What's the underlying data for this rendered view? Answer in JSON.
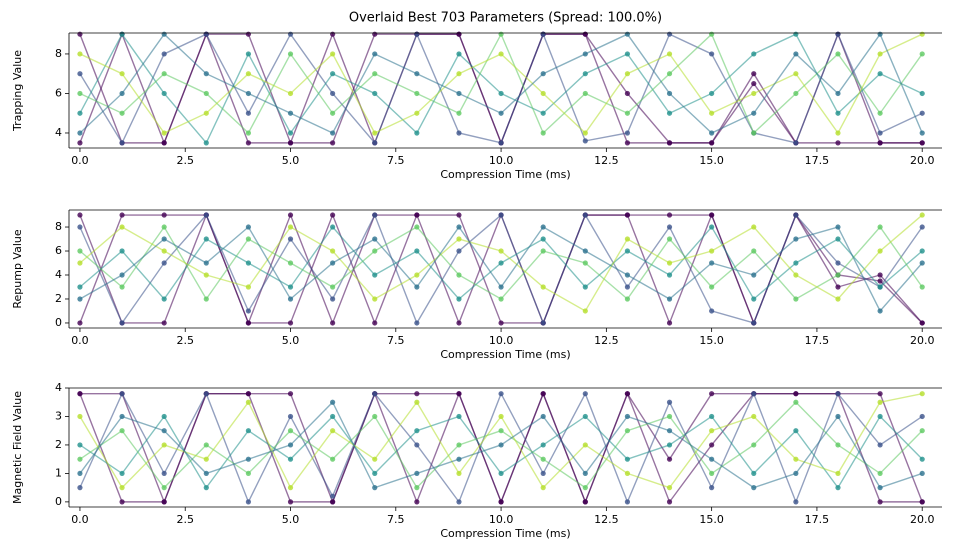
{
  "chart_data": [
    {
      "type": "line",
      "title": "Overlaid Best 703 Parameters (Spread: 100.0%)",
      "xlabel": "Compression Time (ms)",
      "ylabel": "Trapping Value",
      "x": [
        0,
        1,
        2,
        3,
        4,
        5,
        6,
        7,
        8,
        9,
        10,
        11,
        12,
        13,
        14,
        15,
        16,
        17,
        18,
        19,
        20
      ],
      "xlim": [
        -0.26,
        20.47
      ],
      "xticks": [
        {
          "value": 0,
          "label": "0.0"
        },
        2.5,
        {
          "value": 5,
          "label": "5.0"
        },
        7.5,
        {
          "value": 10,
          "label": "10.0"
        },
        12.5,
        {
          "value": 15,
          "label": "15.0"
        },
        17.5,
        {
          "value": 20,
          "label": "20.0"
        }
      ],
      "ylim": [
        3.24,
        9.06
      ],
      "yticks": [
        4,
        6,
        8
      ],
      "series": [
        {
          "color": "#440154",
          "values": [
            9,
            3.5,
            3.5,
            9,
            9,
            3.5,
            9,
            3.5,
            9,
            9,
            3.5,
            9,
            9,
            3.5,
            3.5,
            3.5,
            6.5,
            3.5,
            3.5,
            3.5,
            3.5
          ]
        },
        {
          "color": "#440154",
          "values": [
            3.5,
            9,
            3.5,
            9,
            3.5,
            3.5,
            3.5,
            9,
            9,
            9,
            3.5,
            9,
            9,
            6,
            3.5,
            3.5,
            7,
            3.5,
            9,
            3.5,
            3.5
          ]
        },
        {
          "color": "#3b528b",
          "values": [
            7,
            3.5,
            8,
            9,
            5,
            9,
            6,
            3.5,
            9,
            4,
            3.5,
            9,
            3.6,
            4,
            9,
            8,
            4,
            3.5,
            9,
            4,
            5
          ]
        },
        {
          "color": "#21918c",
          "values": [
            5,
            9,
            6,
            3.5,
            8,
            4,
            7,
            6,
            4,
            8,
            6,
            5,
            7,
            8,
            5,
            6,
            8,
            9,
            5,
            7,
            6
          ]
        },
        {
          "color": "#5ec962",
          "values": [
            6,
            5,
            7,
            6,
            4,
            8,
            5,
            7,
            6,
            5,
            9,
            4,
            6,
            5,
            7,
            9,
            4,
            6,
            8,
            5,
            8
          ]
        },
        {
          "color": "#b5de2b",
          "values": [
            8,
            7,
            4,
            5,
            7,
            6,
            8,
            4,
            5,
            7,
            8,
            6,
            4,
            7,
            8,
            5,
            6,
            7,
            4,
            8,
            9
          ]
        },
        {
          "color": "#2c728e",
          "values": [
            4,
            6,
            9,
            7,
            6,
            5,
            4,
            8,
            7,
            6,
            5,
            7,
            8,
            9,
            6,
            4,
            5,
            8,
            6,
            9,
            4
          ]
        }
      ]
    },
    {
      "type": "line",
      "xlabel": "Compression Time (ms)",
      "ylabel": "Repump Value",
      "x": [
        0,
        1,
        2,
        3,
        4,
        5,
        6,
        7,
        8,
        9,
        10,
        11,
        12,
        13,
        14,
        15,
        16,
        17,
        18,
        19,
        20
      ],
      "xlim": [
        -0.26,
        20.47
      ],
      "xticks": [
        {
          "value": 0,
          "label": "0.0"
        },
        2.5,
        {
          "value": 5,
          "label": "5.0"
        },
        7.5,
        {
          "value": 10,
          "label": "10.0"
        },
        12.5,
        {
          "value": 15,
          "label": "15.0"
        },
        17.5,
        {
          "value": 20,
          "label": "20.0"
        }
      ],
      "ylim": [
        -0.42,
        9.42
      ],
      "yticks": [
        0,
        2,
        4,
        6,
        8
      ],
      "series": [
        {
          "color": "#440154",
          "values": [
            9,
            0,
            0,
            9,
            0,
            0,
            9,
            0,
            9,
            9,
            0,
            0,
            9,
            9,
            9,
            9,
            0,
            9,
            4,
            3.5,
            0
          ]
        },
        {
          "color": "#440154",
          "values": [
            0,
            9,
            9,
            9,
            0,
            9,
            0,
            9,
            9,
            0,
            9,
            0,
            9,
            9,
            0,
            9,
            0,
            9,
            3,
            4,
            0
          ]
        },
        {
          "color": "#3b528b",
          "values": [
            8,
            0,
            5,
            9,
            1,
            7,
            2,
            9,
            0,
            6,
            9,
            0,
            9,
            3,
            8,
            1,
            0,
            9,
            5,
            3,
            8
          ]
        },
        {
          "color": "#21918c",
          "values": [
            3,
            6,
            2,
            7,
            5,
            3,
            8,
            4,
            6,
            2,
            5,
            7,
            3,
            6,
            4,
            8,
            2,
            5,
            7,
            3,
            6
          ]
        },
        {
          "color": "#5ec962",
          "values": [
            6,
            3,
            8,
            2,
            7,
            5,
            3,
            6,
            8,
            4,
            2,
            6,
            5,
            2,
            7,
            3,
            6,
            2,
            4,
            8,
            3
          ]
        },
        {
          "color": "#b5de2b",
          "values": [
            5,
            8,
            6,
            4,
            3,
            8,
            6,
            2,
            4,
            7,
            6,
            3,
            1,
            7,
            5,
            6,
            8,
            4,
            2,
            6,
            9
          ]
        },
        {
          "color": "#2c728e",
          "values": [
            2,
            4,
            7,
            5,
            8,
            2,
            5,
            7,
            3,
            8,
            3,
            8,
            6,
            4,
            2,
            5,
            4,
            7,
            8,
            1,
            5
          ]
        }
      ]
    },
    {
      "type": "line",
      "xlabel": "Compression Time (ms)",
      "ylabel": "Magnetic Field Value",
      "x": [
        0,
        1,
        2,
        3,
        4,
        5,
        6,
        7,
        8,
        9,
        10,
        11,
        12,
        13,
        14,
        15,
        16,
        17,
        18,
        19,
        20
      ],
      "xlim": [
        -0.26,
        20.47
      ],
      "xticks": [
        {
          "value": 0,
          "label": "0.0"
        },
        2.5,
        {
          "value": 5,
          "label": "5.0"
        },
        7.5,
        {
          "value": 10,
          "label": "10.0"
        },
        12.5,
        {
          "value": 15,
          "label": "15.0"
        },
        17.5,
        {
          "value": 20,
          "label": "20.0"
        }
      ],
      "ylim": [
        -0.18,
        4
      ],
      "yticks": [
        0,
        1,
        2,
        3,
        4
      ],
      "series": [
        {
          "color": "#440154",
          "values": [
            3.8,
            0,
            0,
            3.8,
            3.8,
            0,
            0,
            3.8,
            0,
            3.8,
            0,
            3.8,
            0,
            3.8,
            1.5,
            3.8,
            3.8,
            3.8,
            3.8,
            3.8,
            0
          ]
        },
        {
          "color": "#440154",
          "values": [
            3.8,
            3.8,
            0,
            3.8,
            3.8,
            3.8,
            0,
            3.8,
            3.8,
            3.8,
            0,
            3.8,
            0,
            3.8,
            0,
            2,
            3.8,
            3.8,
            3.8,
            0,
            0
          ]
        },
        {
          "color": "#3b528b",
          "values": [
            0.5,
            3.8,
            1,
            3.8,
            0,
            3,
            0.2,
            3.8,
            2,
            0,
            3.8,
            1,
            3.8,
            0,
            3.5,
            0.5,
            3.8,
            0,
            3.8,
            2,
            3
          ]
        },
        {
          "color": "#21918c",
          "values": [
            2,
            1,
            3,
            0.5,
            2.5,
            1.5,
            3,
            1,
            2.5,
            3,
            1,
            2,
            3,
            1.5,
            2,
            3,
            1,
            2.5,
            0.5,
            3,
            1.5
          ]
        },
        {
          "color": "#5ec962",
          "values": [
            1.5,
            2.5,
            0.5,
            2,
            1,
            2.5,
            1.5,
            3,
            0.5,
            2,
            2.5,
            1.5,
            0.5,
            2.5,
            3,
            1,
            2,
            3.5,
            2,
            1,
            2.5
          ]
        },
        {
          "color": "#b5de2b",
          "values": [
            3,
            0.5,
            2,
            1.5,
            3.5,
            0.5,
            2.5,
            1.5,
            3.5,
            1,
            3,
            0.5,
            2,
            1,
            0.5,
            2.5,
            3,
            1.5,
            1,
            3.5,
            3.8
          ]
        },
        {
          "color": "#2c728e",
          "values": [
            1,
            3,
            2.5,
            1,
            1.5,
            2,
            3.5,
            0.5,
            1,
            1.5,
            2,
            3,
            1,
            3,
            2.5,
            1.5,
            0.5,
            1,
            3,
            0.5,
            1
          ]
        }
      ]
    }
  ]
}
